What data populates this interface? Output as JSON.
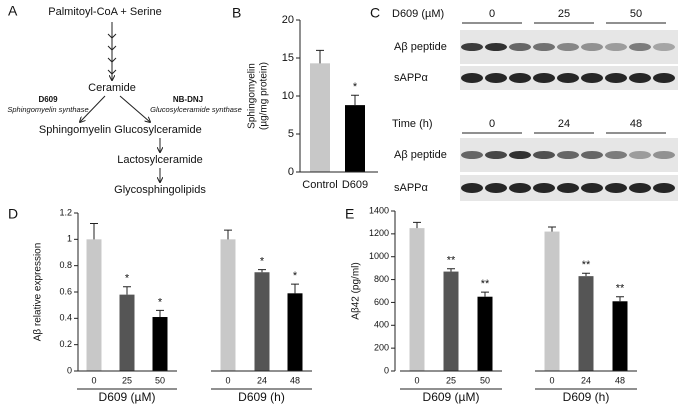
{
  "diagram": {
    "label": "A",
    "substrate": "Palmitoyl-CoA + Serine",
    "ceramide": "Ceramide",
    "inhibitors": [
      {
        "name": "D609",
        "target": "Sphingomyelin synthase"
      },
      {
        "name": "NB-DNJ",
        "target": "Glucosylceramide synthase"
      }
    ],
    "products": [
      "Sphingomyelin",
      "Glucosylceramide",
      "Lactosylceramide",
      "Glycosphingolipids"
    ]
  },
  "blot": {
    "label": "C",
    "panels": [
      {
        "condition": "D609 (µM)",
        "lanes": [
          "0",
          "25",
          "50"
        ],
        "rows": [
          "Aβ peptide",
          "sAPPα"
        ]
      },
      {
        "condition": "Time (h)",
        "lanes": [
          "0",
          "24",
          "48"
        ],
        "rows": [
          "Aβ peptide",
          "sAPPα"
        ]
      }
    ]
  },
  "chart_data": [
    {
      "type": "bar",
      "panel_label": "B",
      "ylabel": [
        "Sphingomyelin",
        "(µg/mg protein)"
      ],
      "categories": [
        "Control",
        "D609"
      ],
      "values": [
        14.3,
        8.8
      ],
      "errors": [
        1.7,
        1.3
      ],
      "colors": [
        "#c8c8c8",
        "#000000"
      ],
      "significance": [
        null,
        "*"
      ],
      "ylim": [
        0,
        20
      ],
      "yticks": [
        0,
        5,
        10,
        15,
        20
      ]
    },
    {
      "type": "bar",
      "panel_label": "D",
      "ylabel": [
        "Aβ relative expression"
      ],
      "categories": [
        "0",
        "25",
        "50",
        "0",
        "24",
        "48"
      ],
      "groups": [
        "D609 (µM)",
        "D609 (h)"
      ],
      "values": [
        1.0,
        0.58,
        0.41,
        1.0,
        0.75,
        0.59
      ],
      "errors": [
        0.12,
        0.06,
        0.05,
        0.07,
        0.02,
        0.07
      ],
      "colors": [
        "#c8c8c8",
        "#555555",
        "#000000",
        "#c8c8c8",
        "#555555",
        "#000000"
      ],
      "significance": [
        null,
        "*",
        "*",
        null,
        "*",
        "*"
      ],
      "ylim": [
        0,
        1.2
      ],
      "yticks": [
        0,
        0.2,
        0.4,
        0.6,
        0.8,
        1,
        1.2
      ]
    },
    {
      "type": "bar",
      "panel_label": "E",
      "ylabel": [
        "Aβ42 (pg/ml)"
      ],
      "categories": [
        "0",
        "25",
        "50",
        "0",
        "24",
        "48"
      ],
      "groups": [
        "D609 (µM)",
        "D609 (h)"
      ],
      "values": [
        1250,
        870,
        650,
        1220,
        830,
        610
      ],
      "errors": [
        50,
        25,
        40,
        40,
        25,
        40
      ],
      "colors": [
        "#c8c8c8",
        "#555555",
        "#000000",
        "#c8c8c8",
        "#555555",
        "#000000"
      ],
      "significance": [
        null,
        "**",
        "**",
        null,
        "**",
        "**"
      ],
      "ylim": [
        0,
        1400
      ],
      "yticks": [
        0,
        200,
        400,
        600,
        800,
        1000,
        1200,
        1400
      ]
    }
  ]
}
